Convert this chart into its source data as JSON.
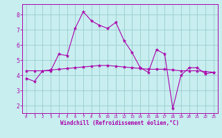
{
  "title": "",
  "xlabel": "Windchill (Refroidissement éolien,°C)",
  "ylabel": "",
  "bg_color": "#c8eef0",
  "line_color": "#aa00aa",
  "grid_color": "#99cccc",
  "xlim": [
    -0.5,
    23.5
  ],
  "ylim": [
    1.5,
    8.7
  ],
  "xticks": [
    0,
    1,
    2,
    3,
    4,
    5,
    6,
    7,
    8,
    9,
    10,
    11,
    12,
    13,
    14,
    15,
    16,
    17,
    18,
    19,
    20,
    21,
    22,
    23
  ],
  "yticks": [
    2,
    3,
    4,
    5,
    6,
    7,
    8
  ],
  "series1_x": [
    0,
    1,
    2,
    3,
    4,
    5,
    6,
    7,
    8,
    9,
    10,
    11,
    12,
    13,
    14,
    15,
    16,
    17,
    18,
    19,
    20,
    21,
    22,
    23
  ],
  "series1_y": [
    3.8,
    3.6,
    4.3,
    4.3,
    5.4,
    5.3,
    7.1,
    8.2,
    7.6,
    7.3,
    7.1,
    7.5,
    6.3,
    5.5,
    4.5,
    4.2,
    5.7,
    5.4,
    1.8,
    4.0,
    4.5,
    4.5,
    4.1,
    4.2
  ],
  "series2_x": [
    0,
    1,
    2,
    3,
    4,
    5,
    6,
    7,
    8,
    9,
    10,
    11,
    12,
    13,
    14,
    15,
    16,
    17,
    18,
    19,
    20,
    21,
    22,
    23
  ],
  "series2_y": [
    4.3,
    4.3,
    4.3,
    4.35,
    4.4,
    4.45,
    4.5,
    4.55,
    4.6,
    4.65,
    4.65,
    4.6,
    4.55,
    4.5,
    4.45,
    4.4,
    4.4,
    4.4,
    4.35,
    4.3,
    4.3,
    4.3,
    4.25,
    4.2
  ]
}
